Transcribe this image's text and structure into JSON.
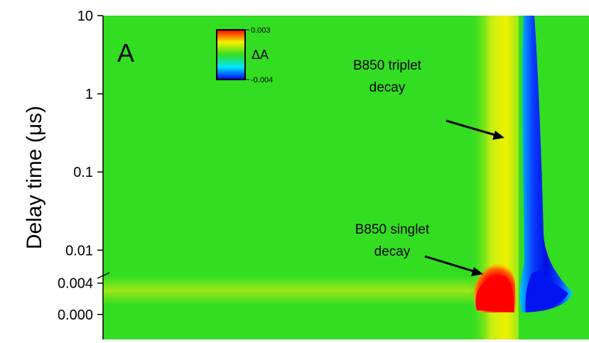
{
  "chart_data": {
    "type": "heatmap",
    "panel_label": "A",
    "y_label": "Delay time (μs)",
    "y_segments": [
      {
        "scale": "log",
        "ylim": [
          0.0056,
          10
        ]
      },
      {
        "scale": "linear",
        "ylim": [
          -0.0032,
          0.0057
        ]
      }
    ],
    "yticks": [
      10,
      1,
      0.1,
      0.01,
      0.004,
      {
        "value": 0,
        "label": "0.000"
      }
    ],
    "colorbar": {
      "label": "ΔA",
      "lim": [
        -0.004,
        0.003
      ],
      "ticks": [
        0.003,
        -0.004
      ],
      "colors": [
        "#0000ff",
        "#00e5ff",
        "#33dd22",
        "#f2f200",
        "#ff0000"
      ]
    },
    "annotations": [
      {
        "lines": [
          "B850 triplet",
          "decay"
        ]
      },
      {
        "lines": [
          "B850 singlet",
          "decay"
        ]
      }
    ]
  }
}
